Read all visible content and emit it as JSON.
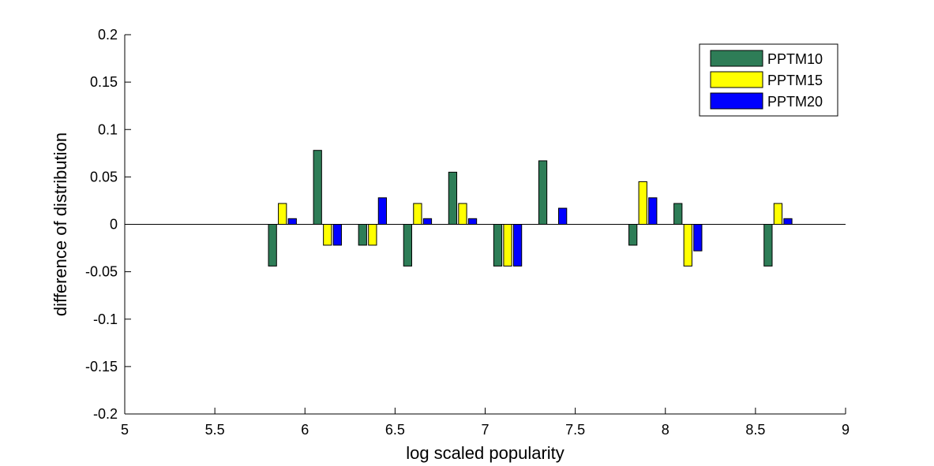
{
  "chart_data": {
    "type": "bar",
    "title": "",
    "xlabel": "log scaled popularity",
    "ylabel": "difference of distribution",
    "xlim": [
      5,
      9
    ],
    "ylim": [
      -0.2,
      0.2
    ],
    "x_ticks": [
      "5",
      "5.5",
      "6",
      "6.5",
      "7",
      "7.5",
      "8",
      "8.5",
      "9"
    ],
    "y_ticks": [
      "-0.2",
      "-0.15",
      "-0.1",
      "-0.05",
      "0",
      "0.05",
      "0.1",
      "0.15",
      "0.2"
    ],
    "x": [
      5.875,
      6.125,
      6.375,
      6.625,
      6.875,
      7.125,
      7.375,
      7.875,
      8.125,
      8.625
    ],
    "series": [
      {
        "name": "PPTM10",
        "color": "#2e7d57",
        "values": [
          -0.044,
          0.078,
          -0.022,
          -0.044,
          0.055,
          -0.044,
          0.067,
          -0.022,
          0.022,
          -0.044
        ]
      },
      {
        "name": "PPTM15",
        "color": "#ffff00",
        "values": [
          0.022,
          -0.022,
          -0.022,
          0.022,
          0.022,
          -0.044,
          0,
          0.045,
          -0.044,
          0.022
        ]
      },
      {
        "name": "PPTM20",
        "color": "#0000ff",
        "values": [
          0.006,
          -0.022,
          0.028,
          0.006,
          0.006,
          -0.044,
          0.017,
          0.028,
          -0.028,
          0.006
        ]
      }
    ],
    "grid": false,
    "legend_position": "top-right"
  }
}
